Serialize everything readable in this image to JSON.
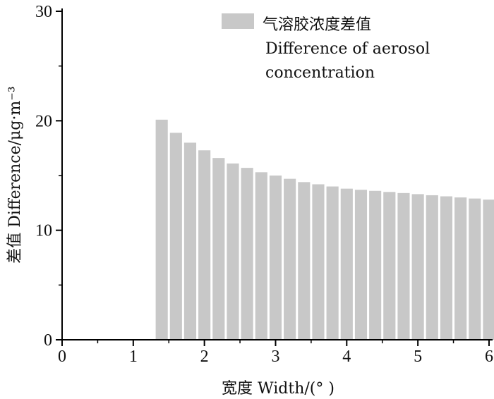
{
  "chart_data": {
    "type": "bar",
    "title": "",
    "xlabel": "宽度 Width/(° )",
    "ylabel": "差值 Difference/μg·m⁻³",
    "xlim": [
      0,
      6.05
    ],
    "ylim": [
      0,
      30
    ],
    "xticks": [
      "0",
      "1",
      "2",
      "3",
      "4",
      "5",
      "6"
    ],
    "yticks": [
      "0",
      "10",
      "20",
      "30"
    ],
    "legend_position": "top-right",
    "grid": false,
    "bar_color": "#c8c8c8",
    "series": [
      {
        "name": "气溶胶浓度差值 Difference of aerosol concentration",
        "x": [
          1.4,
          1.6,
          1.8,
          2.0,
          2.2,
          2.4,
          2.6,
          2.8,
          3.0,
          3.2,
          3.4,
          3.6,
          3.8,
          4.0,
          4.2,
          4.4,
          4.6,
          4.8,
          5.0,
          5.2,
          5.4,
          5.6,
          5.8,
          6.0
        ],
        "values": [
          20.1,
          18.9,
          18.0,
          17.3,
          16.6,
          16.1,
          15.7,
          15.3,
          15.0,
          14.7,
          14.4,
          14.2,
          14.0,
          13.8,
          13.7,
          13.6,
          13.5,
          13.4,
          13.3,
          13.2,
          13.1,
          13.0,
          12.9,
          12.8
        ]
      }
    ],
    "legend": {
      "line1": "气溶胶浓度差值",
      "line2": "Difference of aerosol",
      "line3": "concentration"
    }
  }
}
